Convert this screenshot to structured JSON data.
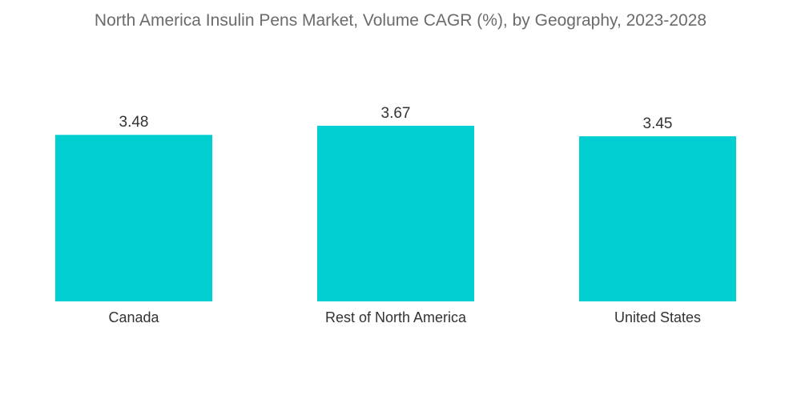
{
  "chart_data": {
    "type": "bar",
    "title": "North America Insulin Pens Market, Volume CAGR (%), by Geography, 2023-2028",
    "categories": [
      "Canada",
      "Rest of North America",
      "United States"
    ],
    "values": [
      3.48,
      3.67,
      3.45
    ],
    "value_labels": [
      "3.48",
      "3.67",
      "3.45"
    ],
    "xlabel": "",
    "ylabel": "",
    "grid": false,
    "legend": "none",
    "bar_color": "#00CED1"
  }
}
